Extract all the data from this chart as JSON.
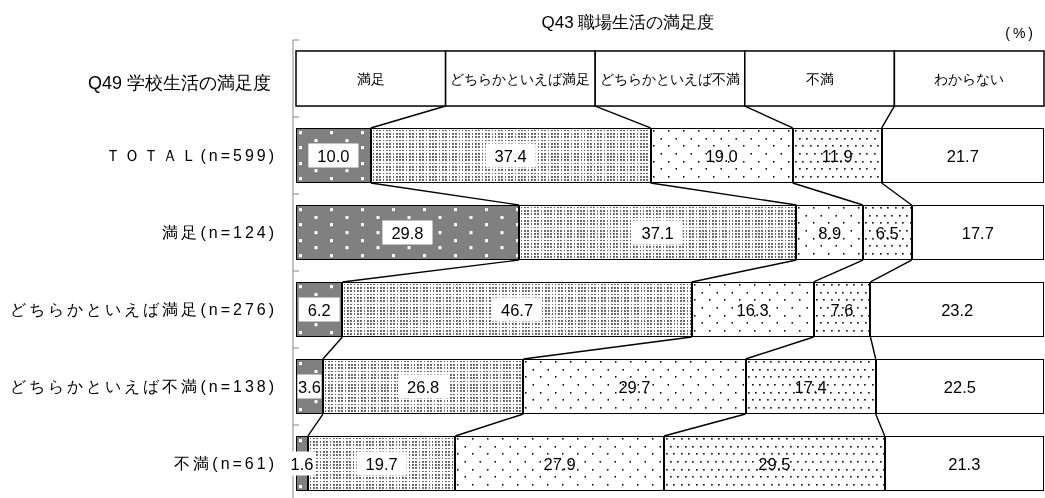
{
  "chart_data": {
    "type": "bar",
    "orientation": "horizontal",
    "stacked": true,
    "title": "Q43 職場生活の満足度",
    "ylabel": "Q49 学校生活の満足度",
    "annotations": [
      "(%)"
    ],
    "categories": [
      "ＴＯＴＡＬ(n=599)",
      "満足(n=124)",
      "どちらかといえば満足(n=276)",
      "どちらかといえば不満(n=138)",
      "不満(n=61)"
    ],
    "series": [
      {
        "name": "満足",
        "color": "#808080",
        "values": [
          10.0,
          29.8,
          6.2,
          3.6,
          1.6
        ],
        "value_labels": [
          "10.0",
          "29.8",
          "6.2",
          "3.6",
          "1.6"
        ]
      },
      {
        "name": "どちらかといえば満足",
        "color": "#ffffff",
        "values": [
          37.4,
          37.1,
          46.7,
          26.8,
          19.7
        ],
        "value_labels": [
          "37.4",
          "37.1",
          "46.7",
          "26.8",
          "19.7"
        ]
      },
      {
        "name": "どちらかといえば不満",
        "color": "#ffffff",
        "values": [
          19.0,
          8.9,
          16.3,
          29.7,
          27.9
        ],
        "value_labels": [
          "19.0",
          "8.9",
          "16.3",
          "29.7",
          "27.9"
        ]
      },
      {
        "name": "不満",
        "color": "#ffffff",
        "values": [
          11.9,
          6.5,
          7.6,
          17.4,
          29.5
        ],
        "value_labels": [
          "11.9",
          "6.5",
          "7.6",
          "17.4",
          "29.5"
        ]
      },
      {
        "name": "わからない",
        "color": "#ffffff",
        "values": [
          21.7,
          17.7,
          23.2,
          22.5,
          21.3
        ],
        "value_labels": [
          "21.7",
          "17.7",
          "23.2",
          "22.5",
          "21.3"
        ]
      }
    ],
    "xlim": [
      0,
      100
    ],
    "legend": "top",
    "tick_labels": "y"
  }
}
